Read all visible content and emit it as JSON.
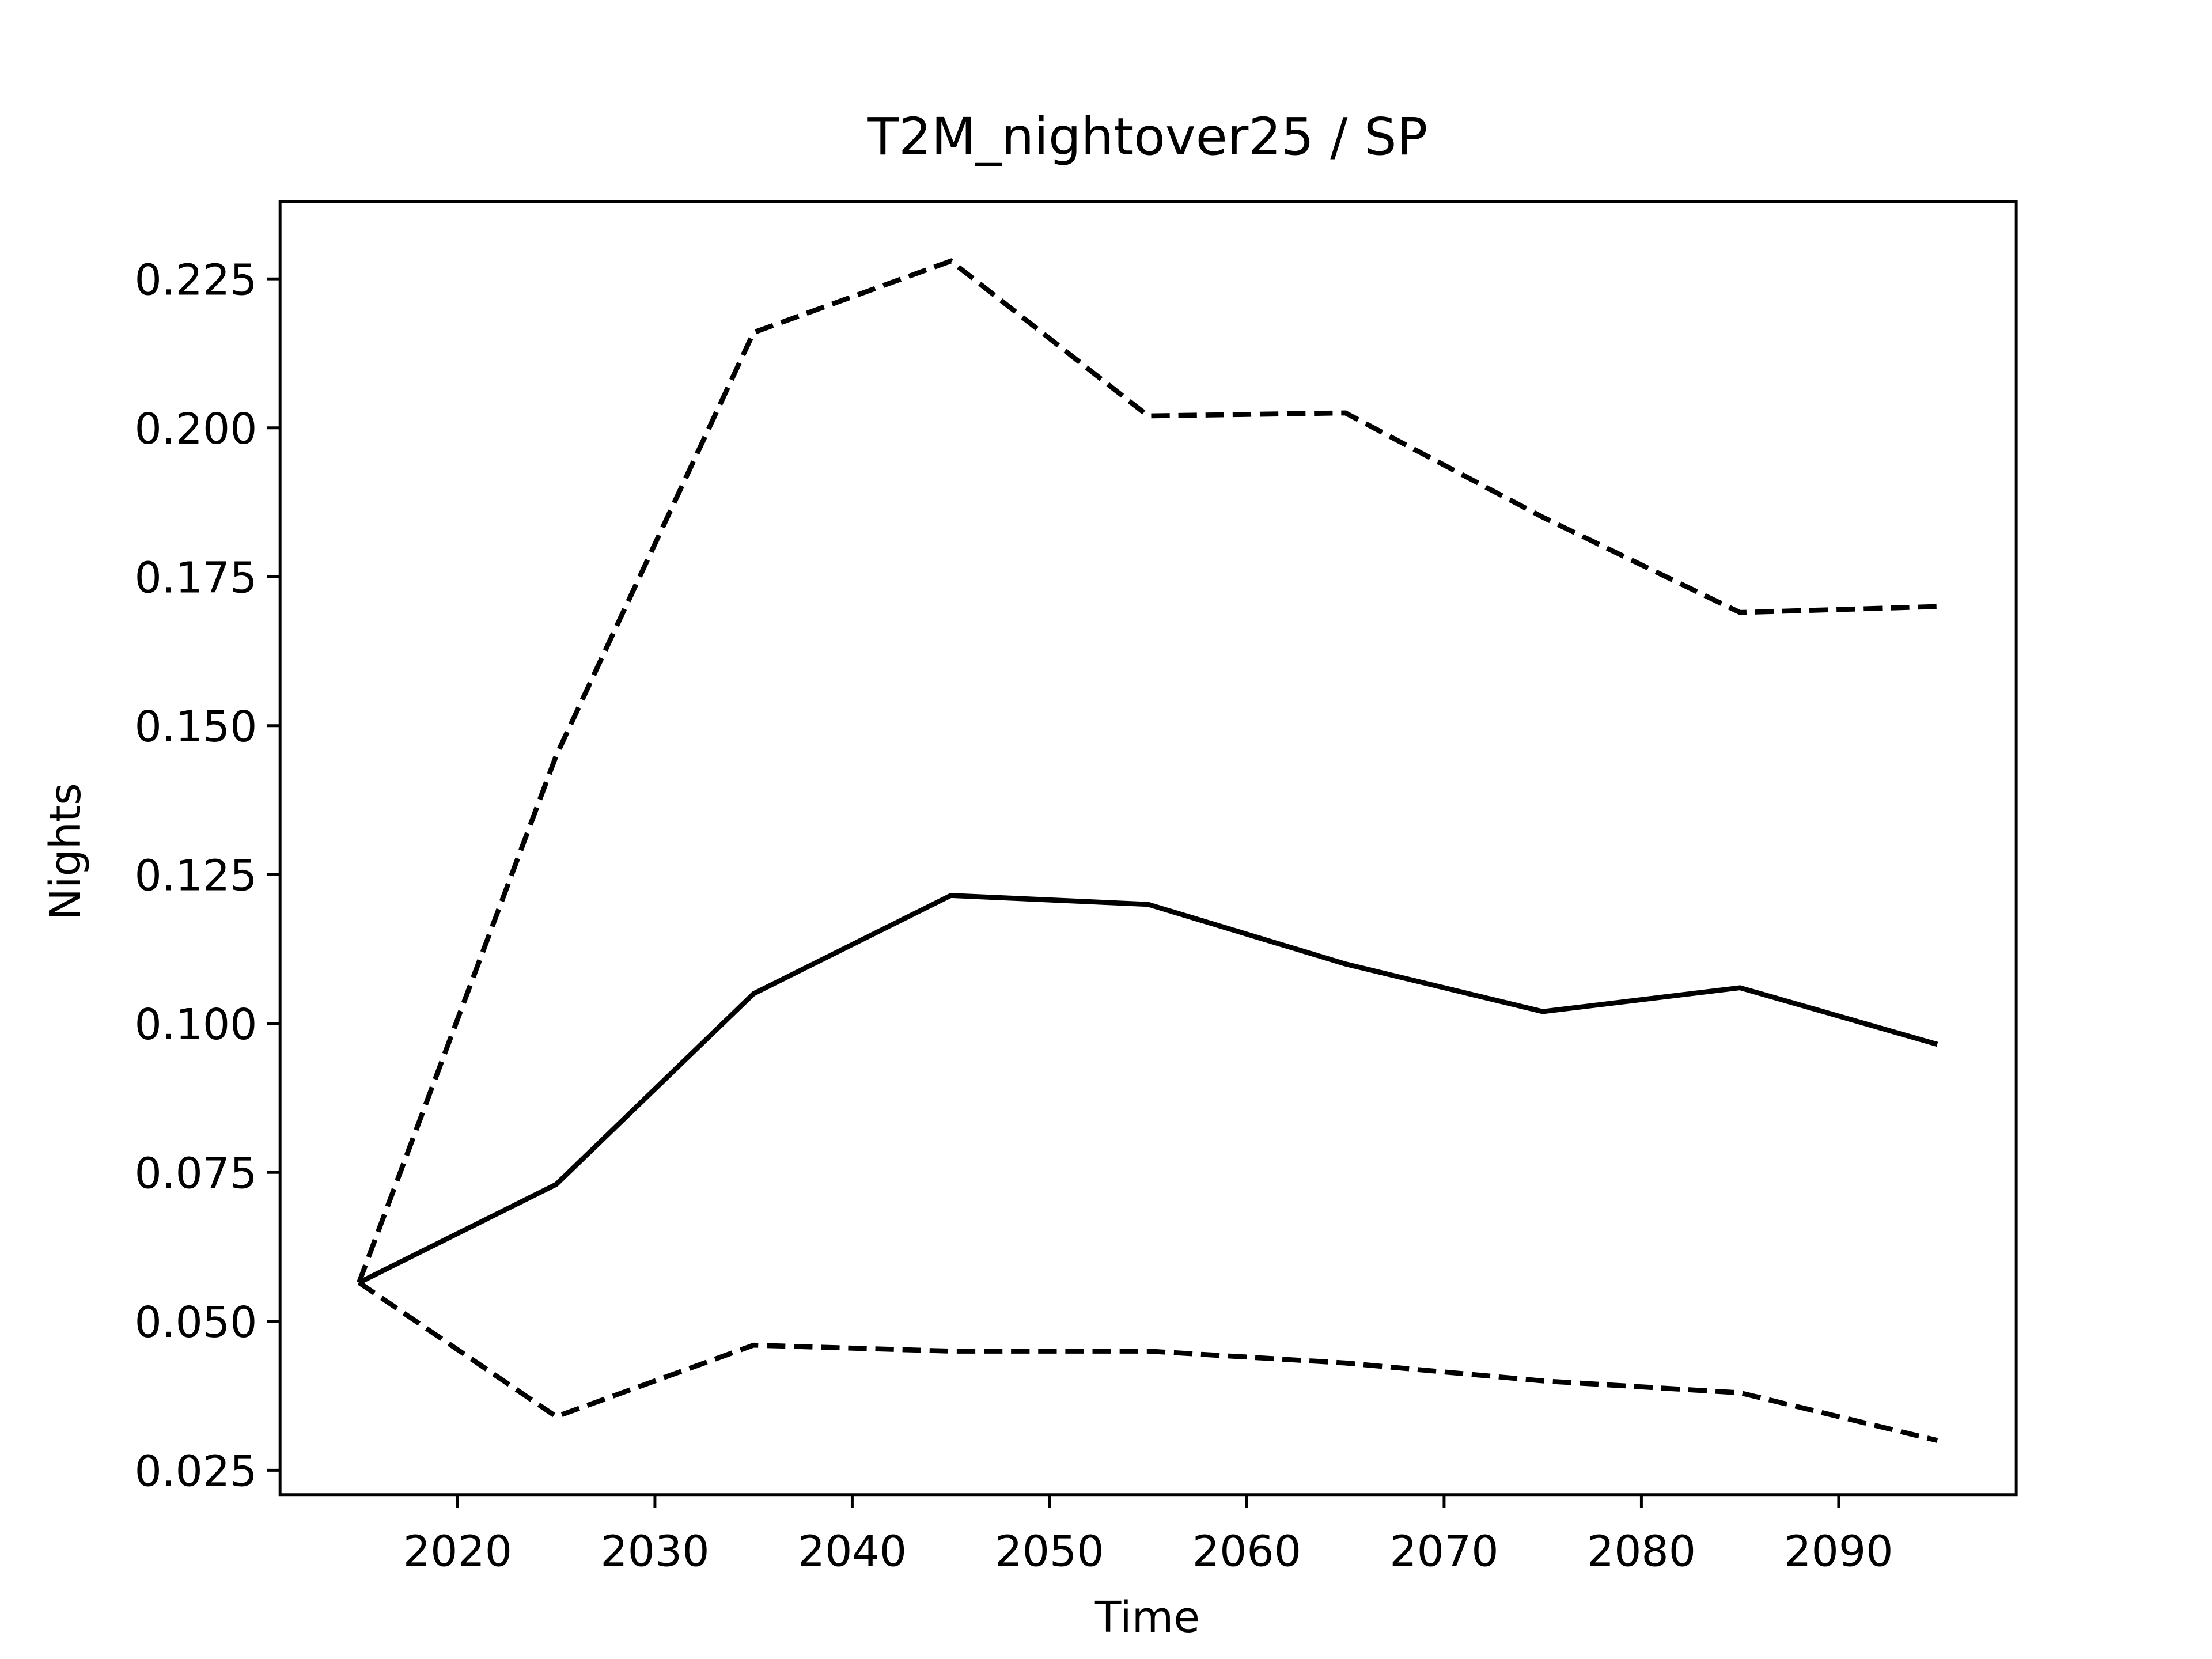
{
  "chart_data": {
    "type": "line",
    "title": "T2M_nightover25 / SP",
    "xlabel": "Time",
    "ylabel": "Nights",
    "x": [
      2015,
      2025,
      2035,
      2045,
      2055,
      2065,
      2075,
      2085,
      2095
    ],
    "series": [
      {
        "color": "#000000",
        "linestyle": "solid",
        "values": [
          0.0565,
          0.073,
          0.105,
          0.1215,
          0.12,
          0.11,
          0.102,
          0.106,
          0.0965
        ]
      },
      {
        "color": "#000000",
        "linestyle": "dashed",
        "values": [
          0.0565,
          0.145,
          0.216,
          0.228,
          0.202,
          0.2025,
          0.185,
          0.169,
          0.17
        ]
      },
      {
        "color": "#000000",
        "linestyle": "dashed",
        "values": [
          0.0565,
          0.034,
          0.046,
          0.045,
          0.045,
          0.043,
          0.04,
          0.038,
          0.03
        ]
      }
    ],
    "xlim": [
      2011,
      2099
    ],
    "xticks": [
      2020,
      2030,
      2040,
      2050,
      2060,
      2070,
      2080,
      2090
    ],
    "ylim": [
      0.0209,
      0.238
    ],
    "yticks": [
      0.025,
      {
        "value": 0.05,
        "label": "0.050"
      },
      0.075,
      {
        "value": 0.1,
        "label": "0.100"
      },
      0.125,
      {
        "value": 0.15,
        "label": "0.150"
      },
      0.175,
      {
        "value": 0.2,
        "label": "0.200"
      },
      0.225
    ],
    "grid": false
  }
}
